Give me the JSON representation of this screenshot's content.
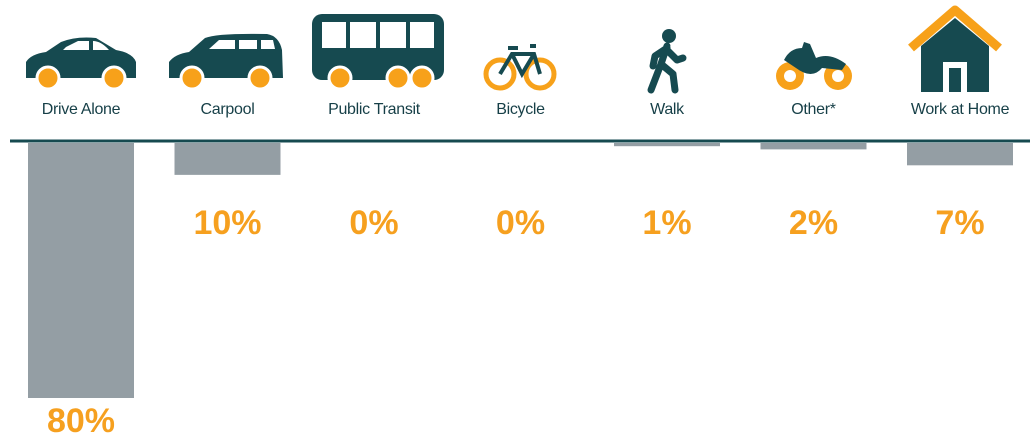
{
  "chart_data": {
    "type": "bar",
    "categories": [
      "Drive Alone",
      "Carpool",
      "Public Transit",
      "Bicycle",
      "Walk",
      "Other*",
      "Work at Home"
    ],
    "values": [
      80,
      10,
      0,
      0,
      1,
      2,
      7
    ],
    "value_labels": [
      "80%",
      "10%",
      "0%",
      "0%",
      "1%",
      "2%",
      "7%"
    ],
    "color": "#949ea4"
  }
}
